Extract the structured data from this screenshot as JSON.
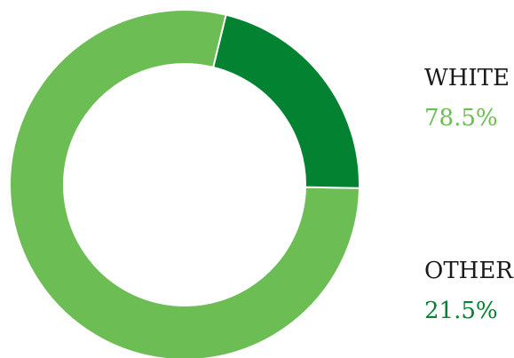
{
  "chart_data": {
    "type": "pie",
    "donut": true,
    "start_angle_deg": 91.1,
    "slices": [
      {
        "name": "WHITE",
        "value": 78.5,
        "label": "78.5%",
        "color": "#6cbd53"
      },
      {
        "name": "OTHER",
        "value": 21.5,
        "label": "21.5%",
        "color": "#038232"
      }
    ],
    "separator_color": "#ffffff",
    "label_color": "#1a1a1a"
  }
}
